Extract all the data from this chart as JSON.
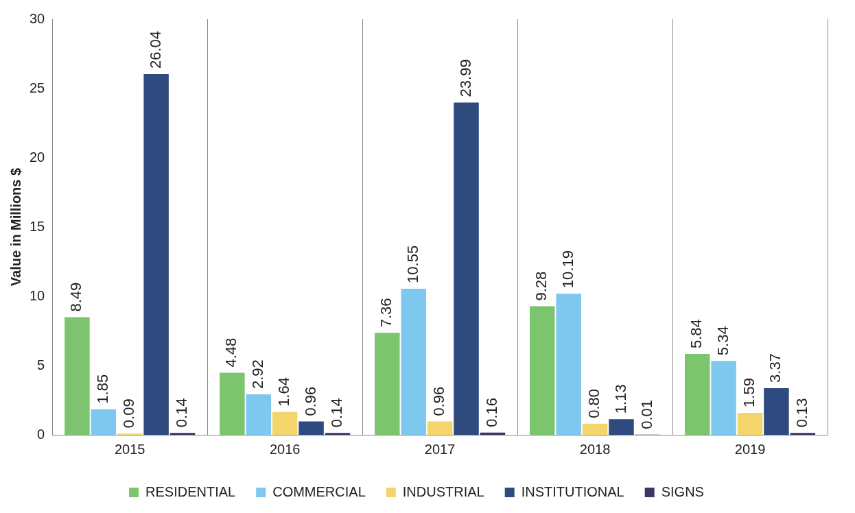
{
  "chart_data": {
    "type": "bar",
    "ylabel": "Value in Millions $",
    "categories": [
      "2015",
      "2016",
      "2017",
      "2018",
      "2019"
    ],
    "series": [
      {
        "name": "RESIDENTIAL",
        "color": "#7dc46f",
        "values": [
          8.49,
          4.48,
          7.36,
          9.28,
          5.84
        ],
        "value_labels": [
          "8.49",
          "4.48",
          "7.36",
          "9.28",
          "5.84"
        ]
      },
      {
        "name": "COMMERCIAL",
        "color": "#7ec8f0",
        "values": [
          1.85,
          2.92,
          10.55,
          10.19,
          5.34
        ],
        "value_labels": [
          "1.85",
          "2.92",
          "10.55",
          "10.19",
          "5.34"
        ]
      },
      {
        "name": "INDUSTRIAL",
        "color": "#f3d56b",
        "values": [
          0.09,
          1.64,
          0.96,
          0.8,
          1.59
        ],
        "value_labels": [
          "0.09",
          "1.64",
          "0.96",
          "0.80",
          "1.59"
        ]
      },
      {
        "name": "INSTITUTIONAL",
        "color": "#2e4a7f",
        "values": [
          26.04,
          0.96,
          23.99,
          1.13,
          3.37
        ],
        "value_labels": [
          "26.04",
          "0.96",
          "23.99",
          "1.13",
          "3.37"
        ]
      },
      {
        "name": "SIGNS",
        "color": "#3c3566",
        "values": [
          0.14,
          0.14,
          0.16,
          0.01,
          0.13
        ],
        "value_labels": [
          "0.14",
          "0.14",
          "0.16",
          "0.01",
          "0.13"
        ]
      }
    ],
    "ylim": [
      0,
      30
    ],
    "yticks": [
      0,
      5,
      10,
      15,
      20,
      25,
      30
    ],
    "grid": "x",
    "legend": "bottom"
  }
}
